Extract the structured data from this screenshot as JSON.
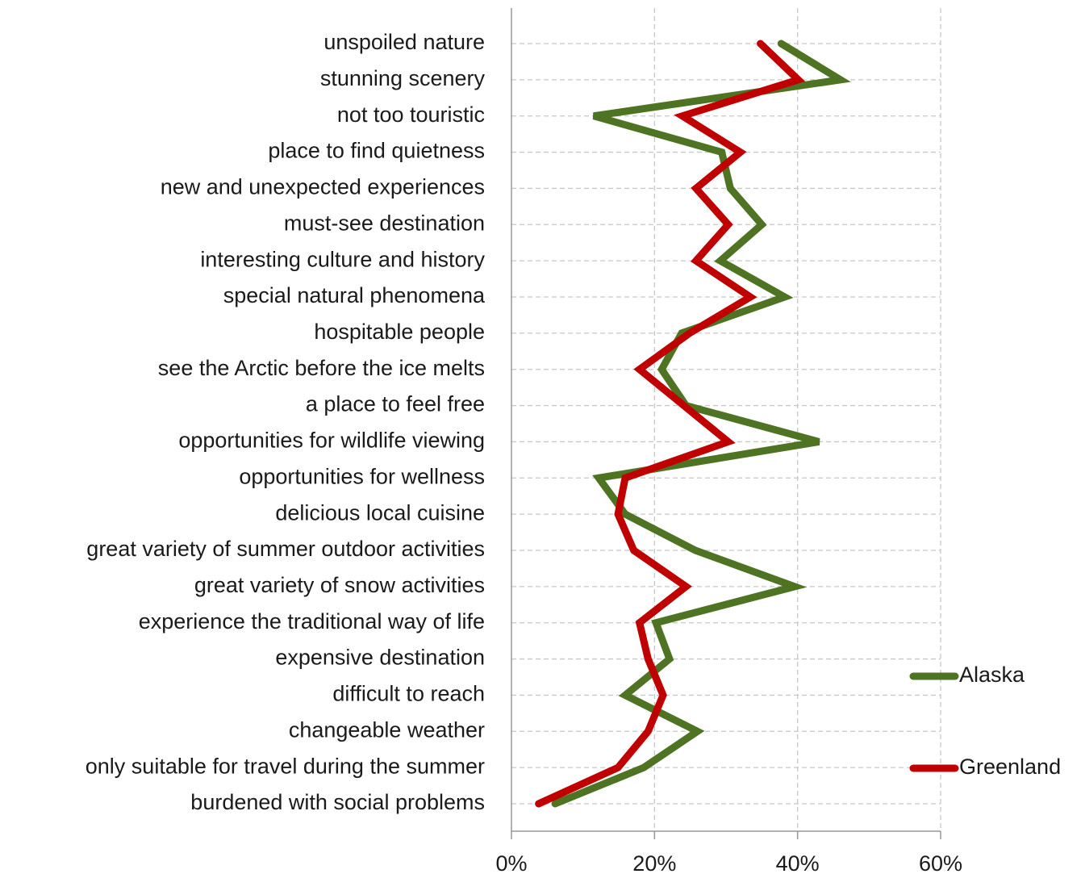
{
  "chart_data": {
    "type": "line",
    "orientation": "horizontal",
    "categories": [
      "unspoiled nature",
      "stunning scenery",
      "not too touristic",
      "place to find quietness",
      "new and unexpected experiences",
      "must-see destination",
      "interesting culture and history",
      "special natural phenomena",
      "hospitable people",
      "see the Arctic before the ice melts",
      "a place to feel free",
      "opportunities for wildlife viewing",
      "opportunities for wellness",
      "delicious local cuisine",
      "great variety of summer outdoor activities",
      "great variety of snow activities",
      "experience the traditional way of life",
      "expensive destination",
      "difficult to reach",
      "changeable weather",
      "only suitable for travel during the summer",
      "burdened with social problems"
    ],
    "series": [
      {
        "name": "Alaska",
        "color": "#4e7423",
        "values": [
          37.7,
          46,
          11.5,
          29.4,
          30.6,
          35,
          29.2,
          38.2,
          23.8,
          21,
          24.4,
          43,
          12.2,
          15.9,
          25.7,
          39.6,
          20.2,
          22.1,
          15.9,
          26,
          18.5,
          6.1
        ]
      },
      {
        "name": "Greenland",
        "color": "#c00000",
        "values": [
          34.8,
          40.1,
          23.9,
          32,
          25.8,
          30.3,
          25.8,
          33.4,
          24.9,
          17.9,
          24.1,
          30.3,
          15.9,
          14.9,
          17.1,
          24.4,
          17.9,
          19.1,
          21.2,
          19.1,
          14.9,
          3.8
        ]
      }
    ],
    "xlim": [
      0,
      60
    ],
    "xticks": [
      {
        "value": 0,
        "label": "0%"
      },
      {
        "value": 20,
        "label": "20%"
      },
      {
        "value": 40,
        "label": "40%"
      },
      {
        "value": 60,
        "label": "60%"
      }
    ],
    "grid": true,
    "legend": "right"
  }
}
